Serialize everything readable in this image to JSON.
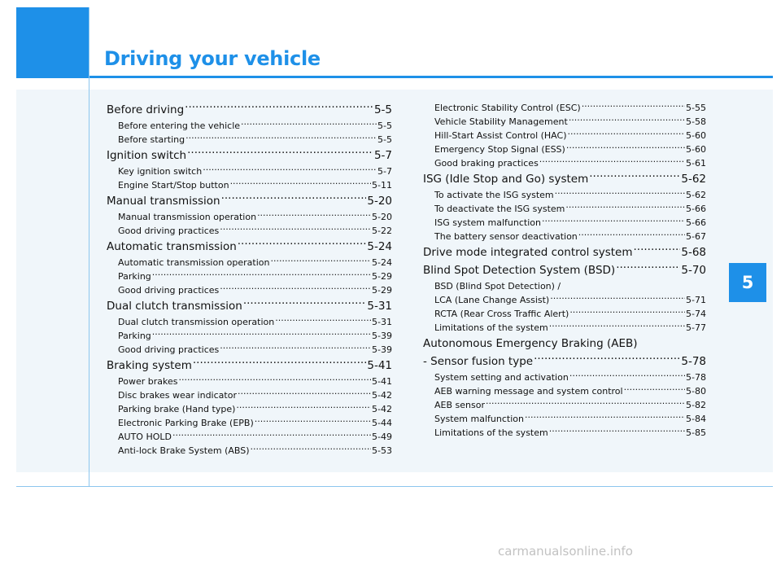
{
  "header": {
    "title": "Driving your vehicle"
  },
  "chapter_tab": "5",
  "toc_left": [
    {
      "type": "main",
      "label": "Before driving",
      "page": "5-5"
    },
    {
      "type": "sub",
      "label": "Before entering the vehicle",
      "page": "5-5"
    },
    {
      "type": "sub",
      "label": "Before starting",
      "page": "5-5"
    },
    {
      "type": "main",
      "label": "Ignition switch",
      "page": "5-7"
    },
    {
      "type": "sub",
      "label": "Key ignition switch",
      "page": "5-7"
    },
    {
      "type": "sub",
      "label": "Engine Start/Stop button",
      "page": "5-11"
    },
    {
      "type": "main",
      "label": "Manual transmission",
      "page": "5-20"
    },
    {
      "type": "sub",
      "label": "Manual transmission operation",
      "page": "5-20"
    },
    {
      "type": "sub",
      "label": "Good driving practices",
      "page": "5-22"
    },
    {
      "type": "main",
      "label": "Automatic transmission",
      "page": "5-24"
    },
    {
      "type": "sub",
      "label": "Automatic transmission operation",
      "page": "5-24"
    },
    {
      "type": "sub",
      "label": "Parking",
      "page": "5-29"
    },
    {
      "type": "sub",
      "label": "Good driving practices",
      "page": "5-29"
    },
    {
      "type": "main",
      "label": "Dual clutch transmission",
      "page": "5-31"
    },
    {
      "type": "sub",
      "label": "Dual clutch transmission operation",
      "page": "5-31"
    },
    {
      "type": "sub",
      "label": "Parking",
      "page": "5-39"
    },
    {
      "type": "sub",
      "label": "Good driving practices",
      "page": "5-39"
    },
    {
      "type": "main",
      "label": "Braking system",
      "page": "5-41"
    },
    {
      "type": "sub",
      "label": "Power brakes",
      "page": "5-41"
    },
    {
      "type": "sub",
      "label": "Disc brakes wear indicator",
      "page": "5-42"
    },
    {
      "type": "sub",
      "label": "Parking brake (Hand type)",
      "page": "5-42"
    },
    {
      "type": "sub",
      "label": "Electronic Parking Brake (EPB)",
      "page": "5-44"
    },
    {
      "type": "sub",
      "label": "AUTO HOLD",
      "page": "5-49"
    },
    {
      "type": "sub",
      "label": "Anti-lock Brake System (ABS)",
      "page": "5-53"
    }
  ],
  "toc_right": [
    {
      "type": "sub",
      "label": "Electronic Stability Control (ESC)",
      "page": "5-55"
    },
    {
      "type": "sub",
      "label": "Vehicle Stability Management",
      "page": "5-58"
    },
    {
      "type": "sub",
      "label": "Hill-Start Assist Control (HAC)",
      "page": "5-60"
    },
    {
      "type": "sub",
      "label": "Emergency Stop Signal (ESS)",
      "page": "5-60"
    },
    {
      "type": "sub",
      "label": "Good braking practices",
      "page": "5-61"
    },
    {
      "type": "main",
      "label": "ISG (Idle Stop and Go) system",
      "page": "5-62"
    },
    {
      "type": "sub",
      "label": "To activate the ISG system",
      "page": "5-62"
    },
    {
      "type": "sub",
      "label": "To deactivate the ISG system",
      "page": "5-66"
    },
    {
      "type": "sub",
      "label": "ISG system malfunction",
      "page": "5-66"
    },
    {
      "type": "sub",
      "label": "The battery sensor deactivation",
      "page": "5-67"
    },
    {
      "type": "main",
      "label": "Drive mode integrated control system",
      "page": "5-68"
    },
    {
      "type": "main",
      "label": "Blind Spot Detection System (BSD)",
      "page": "5-70"
    },
    {
      "type": "sub",
      "label": "BSD (Blind Spot Detection) /",
      "page": ""
    },
    {
      "type": "sub",
      "label": "LCA (Lane Change Assist)",
      "page": "5-71"
    },
    {
      "type": "sub",
      "label": "RCTA (Rear Cross Traffic Alert)",
      "page": "5-74"
    },
    {
      "type": "sub",
      "label": "Limitations of the system",
      "page": "5-77"
    },
    {
      "type": "main",
      "label": "Autonomous Emergency Braking (AEB)",
      "page": ""
    },
    {
      "type": "main",
      "label": "- Sensor fusion type",
      "page": "5-78"
    },
    {
      "type": "sub",
      "label": "System setting and activation",
      "page": "5-78"
    },
    {
      "type": "sub",
      "label": "AEB warning message and system control",
      "page": "5-80"
    },
    {
      "type": "sub",
      "label": "AEB sensor",
      "page": "5-82"
    },
    {
      "type": "sub",
      "label": "System malfunction",
      "page": "5-84"
    },
    {
      "type": "sub",
      "label": "Limitations of the system",
      "page": "5-85"
    }
  ],
  "footer": "carmanualsonline.info",
  "colors": {
    "accent": "#1e90e8",
    "panel": "#f0f6fa",
    "rule": "#8cc6ee"
  }
}
